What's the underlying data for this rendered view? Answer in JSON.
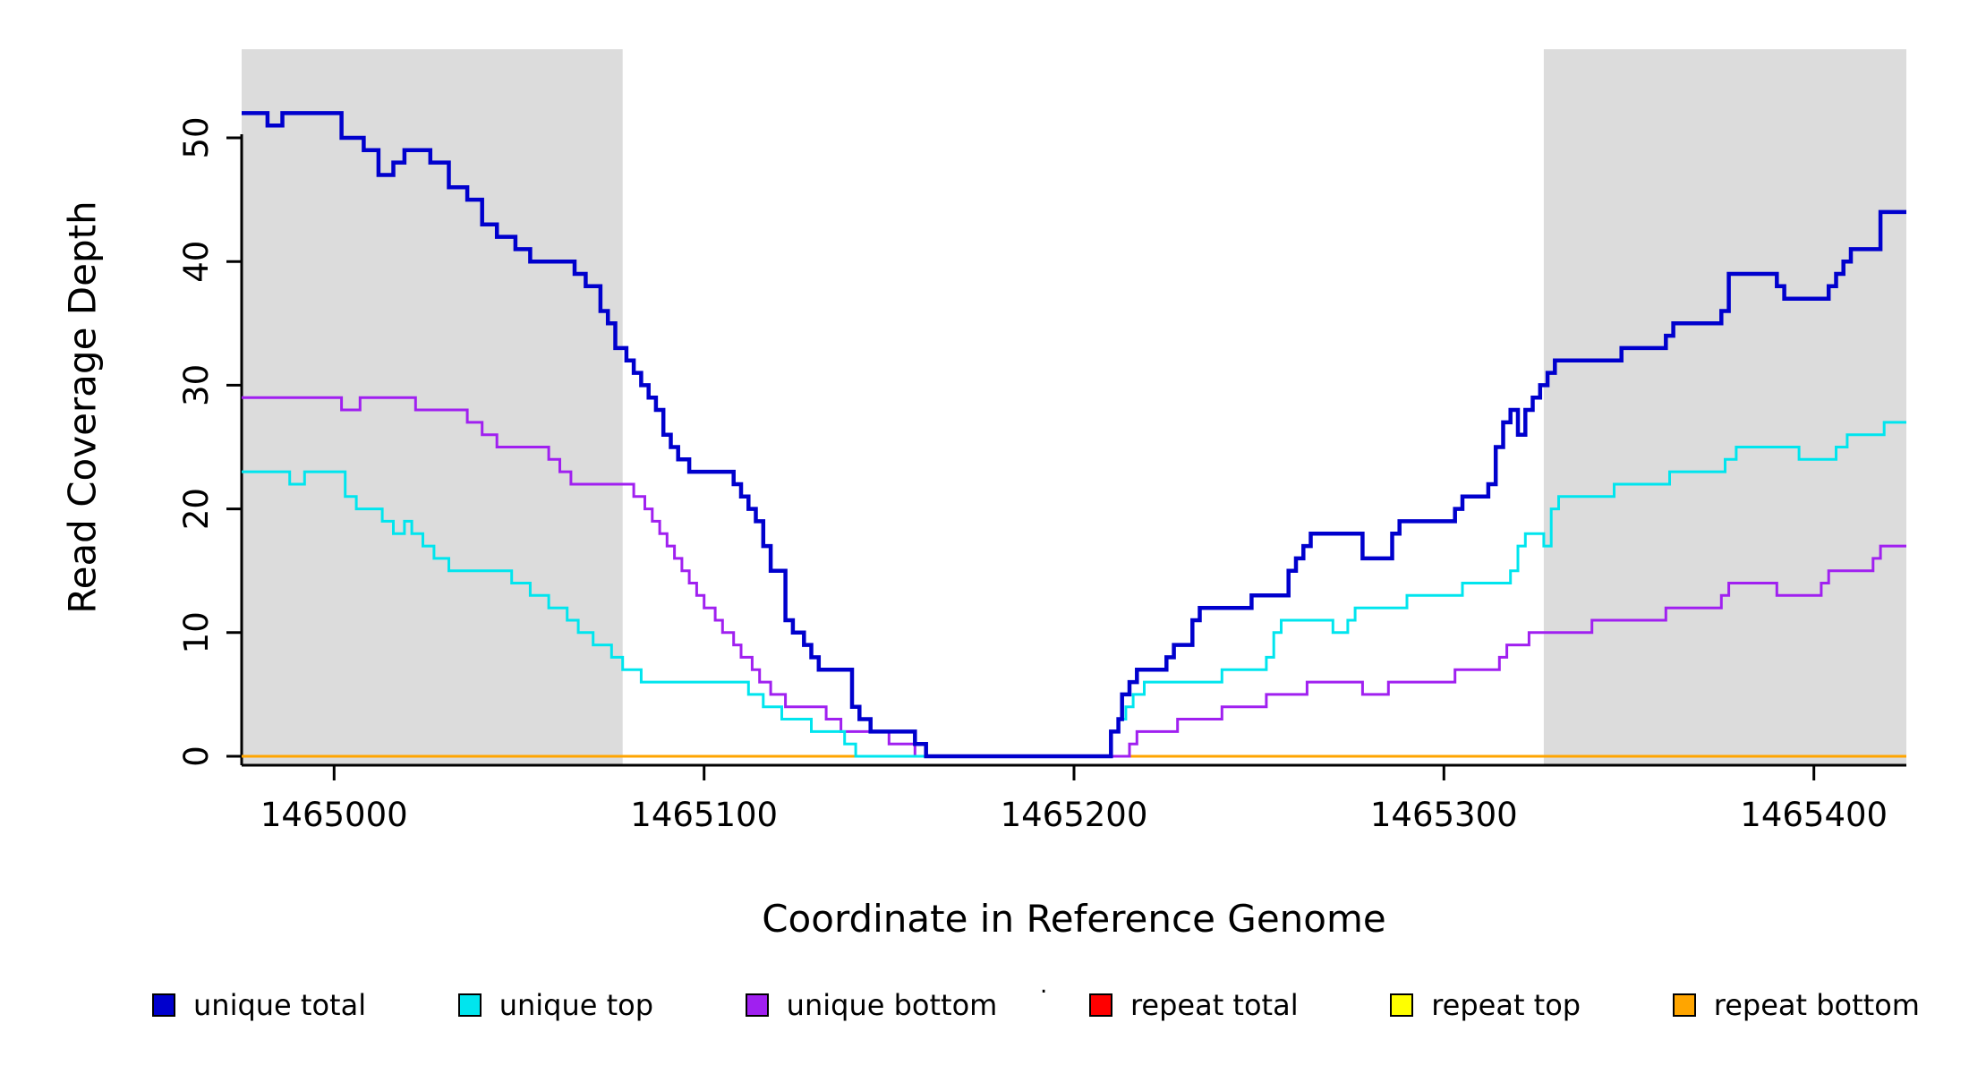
{
  "figure": {
    "xlabel": "Coordinate in Reference Genome",
    "ylabel": "Read Coverage Depth",
    "stray_mark": "."
  },
  "chart_data": {
    "type": "line",
    "step": true,
    "title": "",
    "xlabel": "Coordinate in Reference Genome",
    "ylabel": "Read Coverage Depth",
    "xlim": [
      1464975,
      1465425
    ],
    "ylim": [
      0,
      57
    ],
    "x_ticks": [
      1465000,
      1465100,
      1465200,
      1465300,
      1465400
    ],
    "y_ticks": [
      0,
      10,
      20,
      30,
      40,
      50
    ],
    "grid": false,
    "legend_position": "bottom",
    "shaded_regions": [
      {
        "x0": 1464975,
        "x1": 1465078,
        "color": "#DCDCDC"
      },
      {
        "x0": 1465327,
        "x1": 1465425,
        "color": "#DCDCDC"
      }
    ],
    "series": [
      {
        "name": "repeat total",
        "color": "#FF0000",
        "width": 3,
        "points": [
          [
            1464975,
            0
          ]
        ]
      },
      {
        "name": "repeat top",
        "color": "#FFFF00",
        "width": 3,
        "points": [
          [
            1464975,
            0
          ]
        ]
      },
      {
        "name": "repeat bottom",
        "color": "#FFA500",
        "width": 3,
        "points": [
          [
            1464975,
            0
          ]
        ]
      },
      {
        "name": "unique bottom",
        "color": "#A020F0",
        "width": 3,
        "points": [
          [
            1464975,
            29
          ],
          [
            1465002,
            28
          ],
          [
            1465007,
            29
          ],
          [
            1465022,
            28
          ],
          [
            1465036,
            27
          ],
          [
            1465040,
            26
          ],
          [
            1465044,
            25
          ],
          [
            1465058,
            24
          ],
          [
            1465061,
            23
          ],
          [
            1465064,
            22
          ],
          [
            1465081,
            21
          ],
          [
            1465084,
            20
          ],
          [
            1465086,
            19
          ],
          [
            1465088,
            18
          ],
          [
            1465090,
            17
          ],
          [
            1465092,
            16
          ],
          [
            1465094,
            15
          ],
          [
            1465096,
            14
          ],
          [
            1465098,
            13
          ],
          [
            1465100,
            12
          ],
          [
            1465103,
            11
          ],
          [
            1465105,
            10
          ],
          [
            1465108,
            9
          ],
          [
            1465110,
            8
          ],
          [
            1465113,
            7
          ],
          [
            1465115,
            6
          ],
          [
            1465118,
            5
          ],
          [
            1465122,
            4
          ],
          [
            1465133,
            3
          ],
          [
            1465137,
            2
          ],
          [
            1465150,
            1
          ],
          [
            1465157,
            0
          ],
          [
            1465215,
            1
          ],
          [
            1465217,
            2
          ],
          [
            1465228,
            3
          ],
          [
            1465240,
            4
          ],
          [
            1465252,
            5
          ],
          [
            1465263,
            6
          ],
          [
            1465278,
            5
          ],
          [
            1465285,
            6
          ],
          [
            1465303,
            7
          ],
          [
            1465315,
            8
          ],
          [
            1465317,
            9
          ],
          [
            1465323,
            10
          ],
          [
            1465340,
            11
          ],
          [
            1465360,
            12
          ],
          [
            1465375,
            13
          ],
          [
            1465377,
            14
          ],
          [
            1465390,
            13
          ],
          [
            1465402,
            14
          ],
          [
            1465404,
            15
          ],
          [
            1465416,
            16
          ],
          [
            1465418,
            17
          ]
        ]
      },
      {
        "name": "unique top",
        "color": "#00E5EE",
        "width": 3,
        "points": [
          [
            1464975,
            23
          ],
          [
            1464988,
            22
          ],
          [
            1464992,
            23
          ],
          [
            1465003,
            21
          ],
          [
            1465006,
            20
          ],
          [
            1465013,
            19
          ],
          [
            1465016,
            18
          ],
          [
            1465019,
            19
          ],
          [
            1465021,
            18
          ],
          [
            1465024,
            17
          ],
          [
            1465027,
            16
          ],
          [
            1465031,
            15
          ],
          [
            1465048,
            14
          ],
          [
            1465053,
            13
          ],
          [
            1465058,
            12
          ],
          [
            1465063,
            11
          ],
          [
            1465066,
            10
          ],
          [
            1465070,
            9
          ],
          [
            1465075,
            8
          ],
          [
            1465078,
            7
          ],
          [
            1465083,
            6
          ],
          [
            1465112,
            5
          ],
          [
            1465116,
            4
          ],
          [
            1465121,
            3
          ],
          [
            1465129,
            2
          ],
          [
            1465138,
            1
          ],
          [
            1465141,
            0
          ],
          [
            1465210,
            2
          ],
          [
            1465212,
            3
          ],
          [
            1465214,
            4
          ],
          [
            1465216,
            5
          ],
          [
            1465219,
            6
          ],
          [
            1465240,
            7
          ],
          [
            1465252,
            8
          ],
          [
            1465254,
            10
          ],
          [
            1465256,
            11
          ],
          [
            1465270,
            10
          ],
          [
            1465274,
            11
          ],
          [
            1465276,
            12
          ],
          [
            1465290,
            13
          ],
          [
            1465305,
            14
          ],
          [
            1465318,
            15
          ],
          [
            1465320,
            17
          ],
          [
            1465322,
            18
          ],
          [
            1465327,
            17
          ],
          [
            1465329,
            20
          ],
          [
            1465331,
            21
          ],
          [
            1465346,
            22
          ],
          [
            1465361,
            23
          ],
          [
            1465376,
            24
          ],
          [
            1465379,
            25
          ],
          [
            1465396,
            24
          ],
          [
            1465406,
            25
          ],
          [
            1465409,
            26
          ],
          [
            1465419,
            27
          ]
        ]
      },
      {
        "name": "unique total",
        "color": "#0000CD",
        "width": 4.5,
        "points": [
          [
            1464975,
            52
          ],
          [
            1464982,
            51
          ],
          [
            1464986,
            52
          ],
          [
            1465002,
            50
          ],
          [
            1465008,
            49
          ],
          [
            1465012,
            47
          ],
          [
            1465016,
            48
          ],
          [
            1465019,
            49
          ],
          [
            1465026,
            48
          ],
          [
            1465031,
            46
          ],
          [
            1465036,
            45
          ],
          [
            1465040,
            43
          ],
          [
            1465044,
            42
          ],
          [
            1465049,
            41
          ],
          [
            1465053,
            40
          ],
          [
            1465065,
            39
          ],
          [
            1465068,
            38
          ],
          [
            1465072,
            36
          ],
          [
            1465074,
            35
          ],
          [
            1465076,
            33
          ],
          [
            1465079,
            32
          ],
          [
            1465081,
            31
          ],
          [
            1465083,
            30
          ],
          [
            1465085,
            29
          ],
          [
            1465087,
            28
          ],
          [
            1465089,
            26
          ],
          [
            1465091,
            25
          ],
          [
            1465093,
            24
          ],
          [
            1465096,
            23
          ],
          [
            1465108,
            22
          ],
          [
            1465110,
            21
          ],
          [
            1465112,
            20
          ],
          [
            1465114,
            19
          ],
          [
            1465116,
            17
          ],
          [
            1465118,
            15
          ],
          [
            1465122,
            11
          ],
          [
            1465124,
            10
          ],
          [
            1465127,
            9
          ],
          [
            1465129,
            8
          ],
          [
            1465131,
            7
          ],
          [
            1465140,
            4
          ],
          [
            1465142,
            3
          ],
          [
            1465145,
            2
          ],
          [
            1465157,
            1
          ],
          [
            1465160,
            0
          ],
          [
            1465210,
            2
          ],
          [
            1465212,
            3
          ],
          [
            1465213,
            5
          ],
          [
            1465215,
            6
          ],
          [
            1465217,
            7
          ],
          [
            1465225,
            8
          ],
          [
            1465227,
            9
          ],
          [
            1465232,
            11
          ],
          [
            1465234,
            12
          ],
          [
            1465248,
            13
          ],
          [
            1465258,
            15
          ],
          [
            1465260,
            16
          ],
          [
            1465262,
            17
          ],
          [
            1465264,
            18
          ],
          [
            1465278,
            16
          ],
          [
            1465286,
            18
          ],
          [
            1465288,
            19
          ],
          [
            1465303,
            20
          ],
          [
            1465305,
            21
          ],
          [
            1465312,
            22
          ],
          [
            1465314,
            25
          ],
          [
            1465316,
            27
          ],
          [
            1465318,
            28
          ],
          [
            1465320,
            26
          ],
          [
            1465322,
            28
          ],
          [
            1465324,
            29
          ],
          [
            1465326,
            30
          ],
          [
            1465328,
            31
          ],
          [
            1465330,
            32
          ],
          [
            1465348,
            33
          ],
          [
            1465360,
            34
          ],
          [
            1465362,
            35
          ],
          [
            1465375,
            36
          ],
          [
            1465377,
            39
          ],
          [
            1465390,
            38
          ],
          [
            1465392,
            37
          ],
          [
            1465404,
            38
          ],
          [
            1465406,
            39
          ],
          [
            1465408,
            40
          ],
          [
            1465410,
            41
          ],
          [
            1465418,
            44
          ]
        ]
      }
    ],
    "legend_order": [
      "unique total",
      "unique top",
      "unique bottom",
      "repeat total",
      "repeat top",
      "repeat bottom"
    ]
  }
}
